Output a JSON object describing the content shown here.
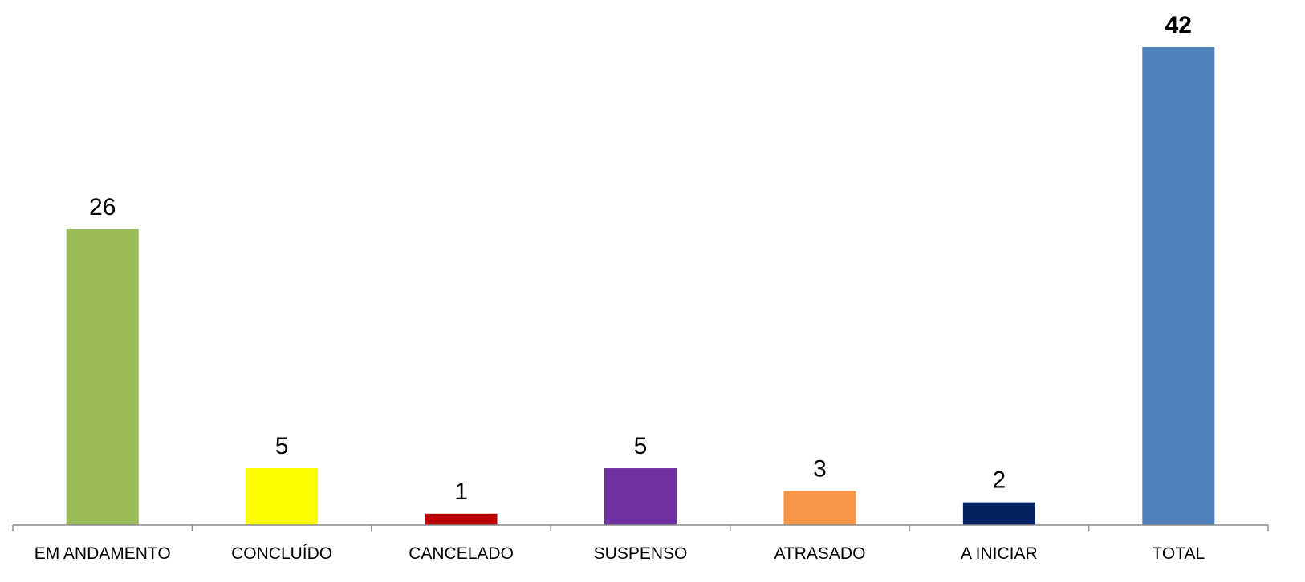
{
  "chart_data": {
    "type": "bar",
    "title": "",
    "xlabel": "",
    "ylabel": "",
    "ylim": [
      0,
      42
    ],
    "grid": false,
    "legend": "none",
    "categories": [
      "EM ANDAMENTO",
      "CONCLUÍDO",
      "CANCELADO",
      "SUSPENSO",
      "ATRASADO",
      "A INICIAR",
      "TOTAL"
    ],
    "values": [
      26,
      5,
      1,
      5,
      3,
      2,
      42
    ],
    "colors": [
      "#9BBB59",
      "#FFFF00",
      "#C00000",
      "#7030A0",
      "#F79646",
      "#002060",
      "#4F81BD"
    ],
    "bold_labels": [
      false,
      false,
      false,
      false,
      false,
      false,
      true
    ]
  }
}
